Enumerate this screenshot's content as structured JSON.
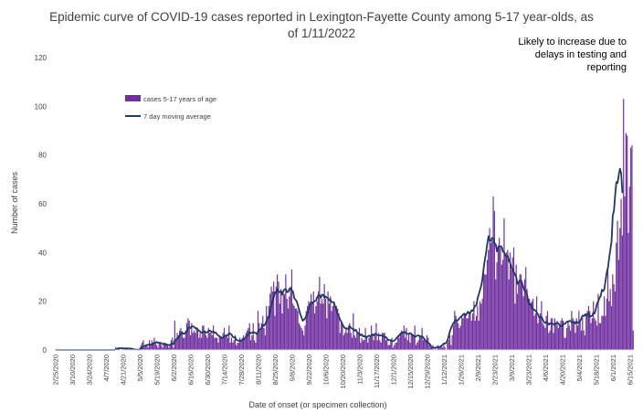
{
  "chart_data": {
    "type": "bar",
    "title_line1": "Epidemic curve of COVID-19 cases reported in Lexington-Fayette County among 5-17 year-olds, as",
    "title_line2": "of 1/11/2022",
    "xlabel": "Date of onset (or specimen collection)",
    "ylabel": "Number of cases",
    "ylim": [
      0,
      120
    ],
    "yticks": [
      0,
      20,
      40,
      60,
      80,
      100,
      120
    ],
    "grid": false,
    "legend_position": "upper-left",
    "colors": {
      "bars": "#7030a0",
      "line": "#1f3864",
      "shade": "#d0d0d0"
    },
    "annotation": {
      "lines": [
        "Likely to increase due to",
        "delays in testing and",
        "reporting"
      ],
      "shaded_from": "12/28/2021",
      "shaded_to": "1/11/2022"
    },
    "x_start": "2/25/2020",
    "x_end": "1/11/2022",
    "x_tick_labels": [
      "2/25/2020",
      "3/10/2020",
      "3/24/2020",
      "4/7/2020",
      "4/21/2020",
      "5/5/2020",
      "5/19/2020",
      "6/2/2020",
      "6/16/2020",
      "6/30/2020",
      "7/14/2020",
      "7/28/2020",
      "8/11/2020",
      "8/25/2020",
      "9/8/2020",
      "9/22/2020",
      "10/6/2020",
      "10/20/2020",
      "11/3/2020",
      "11/17/2020",
      "12/1/2020",
      "12/15/2020",
      "12/29/2020",
      "1/12/2021",
      "1/26/2021",
      "2/9/2021",
      "2/23/2021",
      "3/9/2021",
      "3/23/2021",
      "4/6/2021",
      "4/20/2021",
      "5/4/2021",
      "5/18/2021",
      "6/1/2021",
      "6/15/2021",
      "6/29/2021",
      "7/13/2021",
      "7/27/2021",
      "8/10/2021",
      "8/24/2021",
      "9/7/2021",
      "9/21/2021",
      "10/5/2021",
      "10/19/2021",
      "11/2/2021",
      "11/16/2021",
      "11/30/2021",
      "12/14/2021",
      "12/28/2021",
      "1/11/2022"
    ],
    "series": [
      {
        "name": "cases 5-17 years of age",
        "type": "bar",
        "values": [
          0,
          0,
          0,
          0,
          0,
          0,
          0,
          0,
          0,
          0,
          0,
          0,
          0,
          0,
          0,
          0,
          0,
          0,
          0,
          0,
          0,
          0,
          0,
          0,
          0,
          0,
          0,
          0,
          0,
          0,
          0,
          0,
          0,
          0,
          0,
          0,
          0,
          0,
          0,
          0,
          0,
          0,
          0,
          0,
          0,
          0,
          0,
          0,
          0,
          0,
          1,
          1,
          1,
          1,
          0,
          0,
          1,
          0,
          1,
          1,
          1,
          0,
          0,
          1,
          0,
          0,
          0,
          0,
          0,
          0,
          1,
          2,
          3,
          4,
          1,
          2,
          2,
          1,
          4,
          2,
          4,
          3,
          5,
          3,
          2,
          1,
          3,
          3,
          2,
          1,
          3,
          3,
          2,
          2,
          1,
          2,
          4,
          5,
          1,
          12,
          4,
          7,
          6,
          8,
          9,
          7,
          5,
          5,
          8,
          11,
          13,
          12,
          6,
          11,
          7,
          8,
          7,
          9,
          8,
          5,
          7,
          5,
          10,
          10,
          8,
          6,
          5,
          9,
          7,
          8,
          6,
          10,
          5,
          5,
          5,
          3,
          6,
          5,
          5,
          7,
          9,
          6,
          6,
          5,
          10,
          3,
          5,
          3,
          4,
          6,
          2,
          3,
          3,
          5,
          4,
          5,
          6,
          5,
          7,
          8,
          9,
          11,
          4,
          6,
          11,
          4,
          3,
          6,
          16,
          11,
          8,
          11,
          14,
          9,
          6,
          18,
          14,
          18,
          23,
          26,
          24,
          28,
          14,
          26,
          31,
          28,
          19,
          25,
          15,
          23,
          23,
          31,
          21,
          17,
          22,
          26,
          33,
          19,
          18,
          17,
          17,
          16,
          11,
          10,
          9,
          8,
          6,
          10,
          16,
          18,
          20,
          18,
          23,
          19,
          24,
          15,
          18,
          20,
          24,
          30,
          19,
          21,
          19,
          27,
          21,
          13,
          24,
          19,
          22,
          16,
          18,
          20,
          17,
          18,
          17,
          15,
          7,
          11,
          11,
          6,
          7,
          9,
          7,
          10,
          11,
          7,
          5,
          15,
          6,
          5,
          7,
          7,
          9,
          3,
          5,
          4,
          4,
          9,
          5,
          3,
          5,
          6,
          10,
          6,
          4,
          6,
          11,
          4,
          7,
          4,
          3,
          7,
          7,
          7,
          4,
          5,
          2,
          2,
          4,
          5,
          1,
          2,
          3,
          3,
          6,
          5,
          7,
          8,
          7,
          10,
          5,
          9,
          4,
          7,
          3,
          7,
          6,
          6,
          10,
          2,
          3,
          4,
          6,
          6,
          9,
          4,
          4,
          4,
          6,
          5,
          2,
          1,
          1,
          2,
          0,
          1,
          0,
          2,
          1,
          1,
          2,
          1,
          2,
          1,
          0,
          3,
          4,
          6,
          2,
          6,
          10,
          16,
          14,
          12,
          11,
          9,
          10,
          14,
          13,
          15,
          14,
          13,
          13,
          15,
          16,
          12,
          15,
          20,
          12,
          14,
          18,
          12,
          20,
          19,
          21,
          35,
          31,
          31,
          37,
          41,
          50,
          44,
          45,
          63,
          57,
          29,
          36,
          43,
          46,
          42,
          35,
          37,
          54,
          39,
          40,
          41,
          29,
          40,
          33,
          38,
          42,
          19,
          35,
          23,
          28,
          31,
          31,
          28,
          22,
          29,
          34,
          25,
          20,
          21,
          19,
          20,
          21,
          14,
          15,
          22,
          11,
          14,
          15,
          20,
          11,
          10,
          9,
          14,
          16,
          7,
          8,
          13,
          13,
          7,
          13,
          10,
          12,
          9,
          10,
          12,
          13,
          12,
          5,
          5,
          9,
          12,
          10,
          8,
          16,
          13,
          12,
          7,
          13,
          10,
          16,
          12,
          8,
          13,
          8,
          6,
          15,
          16,
          18,
          16,
          11,
          13,
          20,
          13,
          12,
          10,
          23,
          11,
          11,
          14,
          14,
          22,
          14,
          21,
          34,
          20,
          25,
          18,
          31,
          27,
          24,
          44,
          53,
          37,
          50,
          62,
          47,
          103,
          63,
          89,
          88,
          48,
          67,
          83,
          84,
          8
        ]
      },
      {
        "name": "7 day moving average",
        "type": "line",
        "values": [
          0,
          0,
          0,
          0,
          0,
          0,
          0,
          0,
          0,
          0,
          0,
          0,
          0,
          0,
          0,
          0,
          0,
          0,
          0,
          0,
          0,
          0,
          0,
          0,
          0,
          0,
          0,
          0,
          0,
          0,
          0,
          0,
          0,
          0,
          0,
          0,
          0,
          0,
          0,
          0,
          0,
          0,
          0,
          0,
          0,
          0,
          0,
          0,
          0,
          0,
          0.2,
          0.3,
          0.5,
          0.7,
          0.7,
          0.7,
          0.7,
          0.6,
          0.6,
          0.6,
          0.6,
          0.6,
          0.5,
          0.5,
          0.4,
          0.3,
          0.2,
          0.2,
          0.1,
          0.1,
          0.1,
          0.4,
          0.9,
          1.4,
          1.6,
          1.9,
          2.1,
          2.1,
          2.3,
          2.2,
          2.3,
          2.6,
          3.0,
          3.0,
          3.3,
          2.9,
          3.0,
          2.9,
          2.7,
          2.4,
          2.4,
          2.3,
          2.3,
          2.1,
          2.0,
          2.0,
          2.4,
          2.6,
          2.4,
          3.9,
          4.1,
          4.9,
          5.0,
          6.1,
          6.6,
          7.3,
          6.6,
          6.7,
          7.1,
          7.7,
          9.0,
          9.3,
          9.0,
          9.6,
          9.7,
          9.5,
          8.9,
          9.0,
          8.4,
          7.9,
          7.6,
          7.1,
          7.3,
          7.6,
          7.5,
          7.1,
          7.3,
          7.9,
          7.9,
          7.6,
          7.3,
          7.6,
          7.1,
          7.1,
          6.4,
          5.9,
          5.6,
          5.3,
          4.9,
          5.1,
          5.7,
          5.9,
          6.0,
          6.1,
          6.9,
          6.6,
          6.3,
          5.4,
          5.1,
          5.3,
          4.1,
          4.0,
          3.7,
          3.7,
          3.9,
          4.0,
          4.4,
          4.7,
          5.4,
          5.9,
          6.3,
          7.3,
          6.9,
          7.0,
          7.4,
          7.1,
          7.0,
          6.4,
          7.6,
          8.4,
          8.4,
          9.1,
          10.3,
          9.9,
          10.7,
          11.9,
          12.9,
          13.3,
          15.9,
          18.1,
          20.1,
          21.6,
          23.7,
          23.6,
          25.0,
          24.0,
          23.7,
          24.2,
          22.7,
          24.3,
          24.9,
          25.0,
          23.7,
          23.9,
          25.1,
          25.3,
          24.4,
          23.9,
          21.3,
          20.6,
          20.0,
          18.3,
          16.4,
          14.7,
          13.4,
          12.0,
          12.4,
          13.0,
          14.0,
          15.1,
          17.0,
          18.6,
          19.7,
          19.1,
          19.7,
          20.0,
          20.3,
          21.7,
          22.4,
          22.5,
          21.4,
          22.7,
          22.6,
          21.4,
          22.0,
          21.4,
          21.3,
          20.3,
          20.6,
          19.6,
          19.6,
          19.3,
          17.6,
          16.4,
          14.7,
          13.7,
          12.4,
          11.6,
          10.4,
          9.6,
          8.9,
          8.9,
          8.7,
          8.6,
          9.7,
          9.1,
          8.7,
          8.6,
          7.9,
          8.3,
          7.3,
          6.9,
          6.6,
          6.0,
          6.4,
          5.6,
          5.6,
          5.6,
          5.1,
          5.6,
          5.9,
          5.7,
          5.9,
          6.4,
          6.0,
          6.7,
          6.4,
          6.1,
          6.0,
          6.0,
          5.9,
          5.9,
          5.6,
          5.3,
          5.3,
          4.6,
          4.1,
          4.0,
          4.0,
          3.6,
          3.6,
          3.9,
          4.3,
          5.1,
          5.4,
          6.1,
          6.6,
          7.0,
          7.3,
          7.1,
          7.4,
          6.6,
          6.6,
          6.6,
          6.9,
          6.6,
          6.1,
          5.9,
          5.3,
          5.6,
          5.9,
          6.0,
          5.6,
          5.4,
          5.6,
          5.1,
          4.3,
          3.6,
          3.4,
          2.9,
          2.6,
          1.9,
          1.0,
          1.0,
          0.9,
          1.0,
          1.0,
          1.1,
          1.3,
          1.3,
          1.7,
          2.1,
          2.7,
          2.6,
          3.0,
          3.9,
          5.7,
          7.6,
          9.1,
          10.1,
          11.1,
          11.7,
          12.3,
          12.0,
          12.4,
          13.1,
          13.6,
          14.0,
          14.6,
          14.9,
          14.1,
          14.9,
          15.7,
          14.9,
          15.3,
          16.3,
          16.0,
          17.1,
          18.1,
          18.3,
          21.3,
          22.9,
          24.7,
          26.3,
          29.3,
          33.6,
          37.1,
          39.9,
          43.7,
          46.7,
          44.7,
          45.0,
          46.0,
          45.7,
          43.9,
          43.3,
          40.4,
          42.0,
          42.4,
          42.6,
          42.3,
          40.3,
          40.1,
          38.9,
          38.4,
          38.6,
          36.6,
          35.7,
          33.6,
          33.2,
          31.9,
          31.0,
          29.9,
          27.1,
          27.7,
          28.6,
          28.6,
          27.1,
          25.6,
          24.3,
          23.9,
          22.7,
          19.9,
          18.6,
          18.9,
          17.4,
          16.6,
          16.6,
          16.0,
          15.3,
          14.7,
          13.4,
          13.3,
          13.6,
          12.4,
          11.4,
          11.1,
          11.6,
          11.0,
          10.4,
          11.0,
          10.7,
          10.7,
          10.7,
          10.1,
          11.0,
          11.1,
          10.9,
          10.1,
          9.6,
          9.7,
          10.7,
          10.7,
          11.0,
          11.6,
          11.6,
          11.9,
          11.9,
          11.4,
          11.1,
          11.4,
          10.9,
          11.7,
          11.1,
          11.3,
          11.9,
          13.0,
          14.1,
          13.9,
          14.6,
          14.0,
          14.7,
          15.0,
          13.6,
          13.9,
          14.0,
          15.4,
          15.0,
          16.9,
          19.1,
          19.9,
          21.4,
          22.1,
          24.7,
          24.1,
          24.9,
          28.4,
          31.7,
          33.7,
          37.7,
          41.1,
          44.6,
          55.1,
          57.1,
          63.7,
          68.9,
          68.6,
          71.9,
          74.4,
          72.4,
          64.4
        ]
      }
    ]
  }
}
